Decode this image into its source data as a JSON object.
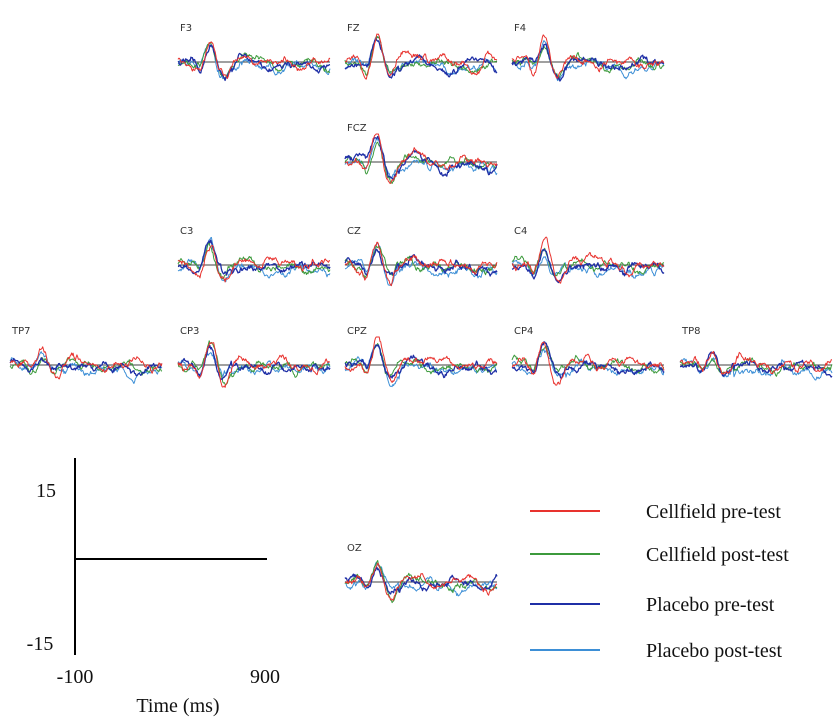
{
  "chart_data": {
    "type": "line",
    "series": [
      {
        "name": "Cellfield pre-test",
        "color": "#e8322e"
      },
      {
        "name": "Cellfield post-test",
        "color": "#3c9a3c"
      },
      {
        "name": "Placebo pre-test",
        "color": "#1f2fa6"
      },
      {
        "name": "Placebo post-test",
        "color": "#3d8fd6"
      }
    ],
    "channels": [
      {
        "label": "F3",
        "amp": 1.0,
        "red_gain": 1.25
      },
      {
        "label": "FZ",
        "amp": 1.1,
        "red_gain": 1.2
      },
      {
        "label": "F4",
        "amp": 1.0,
        "red_gain": 1.3
      },
      {
        "label": "FCZ",
        "amp": 1.2,
        "red_gain": 1.25
      },
      {
        "label": "C3",
        "amp": 1.0,
        "red_gain": 1.4
      },
      {
        "label": "CZ",
        "amp": 1.1,
        "red_gain": 1.2
      },
      {
        "label": "C4",
        "amp": 0.9,
        "red_gain": 1.35
      },
      {
        "label": "TP7",
        "amp": 0.6,
        "red_gain": 1.5
      },
      {
        "label": "CP3",
        "amp": 1.0,
        "red_gain": 1.4
      },
      {
        "label": "CPZ",
        "amp": 1.1,
        "red_gain": 1.3
      },
      {
        "label": "CP4",
        "amp": 0.9,
        "red_gain": 1.3
      },
      {
        "label": "TP8",
        "amp": 0.6,
        "red_gain": 1.2
      },
      {
        "label": "OZ",
        "amp": 1.0,
        "red_gain": 1.0
      }
    ],
    "scale": {
      "y_top_label": "15",
      "y_bottom_label": "-15",
      "ylim": [
        -15,
        15
      ],
      "x_start_label": "-100",
      "x_end_label": "900",
      "xlim": [
        -100,
        900
      ],
      "xlabel": "Time (ms)"
    },
    "legend_position": "right"
  }
}
